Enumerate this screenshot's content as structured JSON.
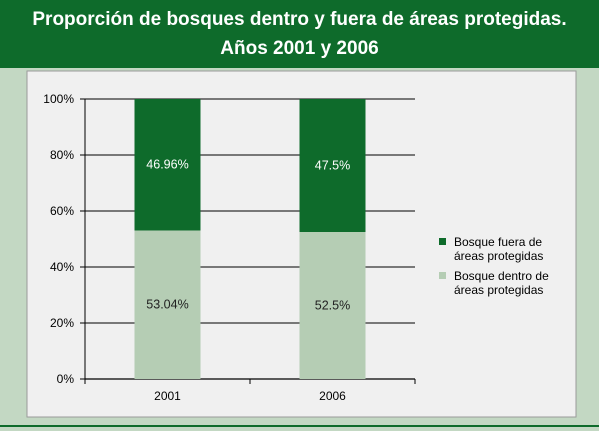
{
  "header": {
    "title_line1": "Proporción de bosques dentro y fuera de áreas protegidas.",
    "title_line2": "Años 2001 y 2006"
  },
  "colors": {
    "header_bg": "#0e6b2b",
    "page_bg": "#c3d8c3",
    "panel_bg": "#f0f0f0",
    "fuera": "#0e6b2b",
    "dentro": "#b5cdb4"
  },
  "chart_data": {
    "type": "bar",
    "stacked": true,
    "percent_axis": true,
    "categories": [
      "2001",
      "2006"
    ],
    "series": [
      {
        "name": "Bosque dentro de áreas protegidas",
        "legend_lines": [
          "Bosque dentro de",
          "áreas protegidas"
        ],
        "values": [
          53.04,
          52.5
        ],
        "labels": [
          "53.04%",
          "52.5%"
        ],
        "color": "#b5cdb4",
        "label_color": "#222222"
      },
      {
        "name": "Bosque fuera de áreas protegidas",
        "legend_lines": [
          "Bosque fuera de",
          "áreas protegidas"
        ],
        "values": [
          46.96,
          47.5
        ],
        "labels": [
          "46.96%",
          "47.5%"
        ],
        "color": "#0e6b2b",
        "label_color": "#ffffff"
      }
    ],
    "ylim": [
      0,
      100
    ],
    "yticks": [
      "0%",
      "20%",
      "40%",
      "60%",
      "80%",
      "100%"
    ],
    "grid": true,
    "legend_position": "right",
    "legend_order": [
      1,
      0
    ],
    "title": "",
    "xlabel": "",
    "ylabel": ""
  }
}
